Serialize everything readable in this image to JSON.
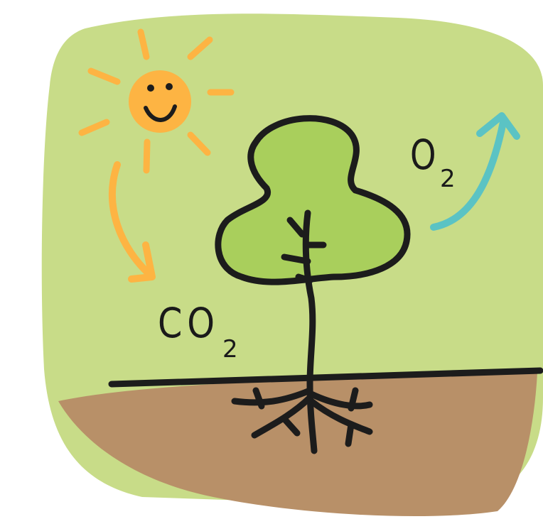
{
  "labels": {
    "co2": {
      "main": "CO",
      "sub": "2"
    },
    "o2": {
      "main": "O",
      "sub": "2"
    }
  }
}
